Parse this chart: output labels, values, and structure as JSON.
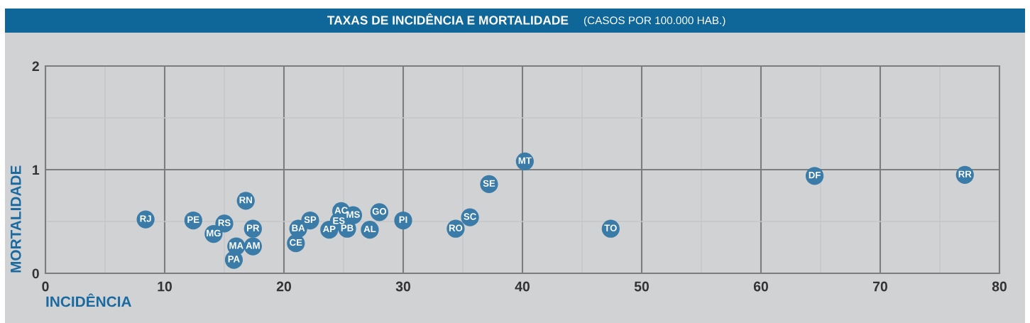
{
  "chart_data": {
    "type": "scatter",
    "title": "TAXAS DE INCIDÊNCIA E MORTALIDADE",
    "subtitle": "(CASOS POR 100.000 HAB.)",
    "xlabel": "INCIDÊNCIA",
    "ylabel": "MORTALIDADE",
    "xlim": [
      0,
      80
    ],
    "ylim": [
      0,
      2
    ],
    "xticks": [
      0,
      {
        "value": 5,
        "label": null
      },
      10,
      {
        "value": 15,
        "label": null
      },
      20,
      {
        "value": 25,
        "label": null
      },
      30,
      {
        "value": 35,
        "label": null
      },
      40,
      {
        "value": 45,
        "label": null
      },
      50,
      {
        "value": 55,
        "label": null
      },
      60,
      {
        "value": 65,
        "label": null
      },
      70,
      {
        "value": 75,
        "label": null
      },
      80
    ],
    "yticks": [
      0,
      {
        "value": 0.5,
        "label": null
      },
      1,
      {
        "value": 1.5,
        "label": null
      },
      2
    ],
    "grid": true,
    "marker": "circle",
    "series": [
      {
        "name": "RJ",
        "color": "#3a7ba8",
        "x": [
          8.4
        ],
        "values": [
          0.52
        ]
      },
      {
        "name": "PE",
        "color": "#3a7ba8",
        "x": [
          12.4
        ],
        "values": [
          0.51
        ]
      },
      {
        "name": "MG",
        "color": "#3a7ba8",
        "x": [
          14.1
        ],
        "values": [
          0.38
        ]
      },
      {
        "name": "RS",
        "color": "#3a7ba8",
        "x": [
          15.0
        ],
        "values": [
          0.48
        ]
      },
      {
        "name": "RN",
        "color": "#3a7ba8",
        "x": [
          16.8
        ],
        "values": [
          0.7
        ]
      },
      {
        "name": "PR",
        "color": "#3a7ba8",
        "x": [
          17.4
        ],
        "values": [
          0.43
        ]
      },
      {
        "name": "MA",
        "color": "#3a7ba8",
        "x": [
          16.0
        ],
        "values": [
          0.26
        ]
      },
      {
        "name": "AM",
        "color": "#3a7ba8",
        "x": [
          17.4
        ],
        "values": [
          0.26
        ]
      },
      {
        "name": "PA",
        "color": "#3a7ba8",
        "x": [
          15.8
        ],
        "values": [
          0.13
        ]
      },
      {
        "name": "BA",
        "color": "#3a7ba8",
        "x": [
          21.2
        ],
        "values": [
          0.43
        ]
      },
      {
        "name": "CE",
        "color": "#3a7ba8",
        "x": [
          21.0
        ],
        "values": [
          0.29
        ]
      },
      {
        "name": "SP",
        "color": "#3a7ba8",
        "x": [
          22.2
        ],
        "values": [
          0.51
        ]
      },
      {
        "name": "AP",
        "color": "#3a7ba8",
        "x": [
          23.8
        ],
        "values": [
          0.42
        ]
      },
      {
        "name": "AC",
        "color": "#3a7ba8",
        "x": [
          24.8
        ],
        "values": [
          0.6
        ]
      },
      {
        "name": "MS",
        "color": "#3a7ba8",
        "x": [
          25.8
        ],
        "values": [
          0.56
        ]
      },
      {
        "name": "PB",
        "color": "#3a7ba8",
        "x": [
          25.3
        ],
        "values": [
          0.43
        ]
      },
      {
        "name": "ES",
        "color": "#3a7ba8",
        "x": [
          24.6
        ],
        "values": [
          0.5
        ]
      },
      {
        "name": "AL",
        "color": "#3a7ba8",
        "x": [
          27.2
        ],
        "values": [
          0.42
        ]
      },
      {
        "name": "GO",
        "color": "#3a7ba8",
        "x": [
          28.0
        ],
        "values": [
          0.59
        ]
      },
      {
        "name": "PI",
        "color": "#3a7ba8",
        "x": [
          30.0
        ],
        "values": [
          0.51
        ]
      },
      {
        "name": "RO",
        "color": "#3a7ba8",
        "x": [
          34.4
        ],
        "values": [
          0.43
        ]
      },
      {
        "name": "SC",
        "color": "#3a7ba8",
        "x": [
          35.6
        ],
        "values": [
          0.54
        ]
      },
      {
        "name": "SE",
        "color": "#3a7ba8",
        "x": [
          37.2
        ],
        "values": [
          0.86
        ]
      },
      {
        "name": "MT",
        "color": "#3a7ba8",
        "x": [
          40.2
        ],
        "values": [
          1.08
        ]
      },
      {
        "name": "TO",
        "color": "#3a7ba8",
        "x": [
          47.4
        ],
        "values": [
          0.43
        ]
      },
      {
        "name": "DF",
        "color": "#3a7ba8",
        "x": [
          64.5
        ],
        "values": [
          0.94
        ]
      },
      {
        "name": "RR",
        "color": "#3a7ba8",
        "x": [
          77.1
        ],
        "values": [
          0.95
        ]
      }
    ]
  }
}
